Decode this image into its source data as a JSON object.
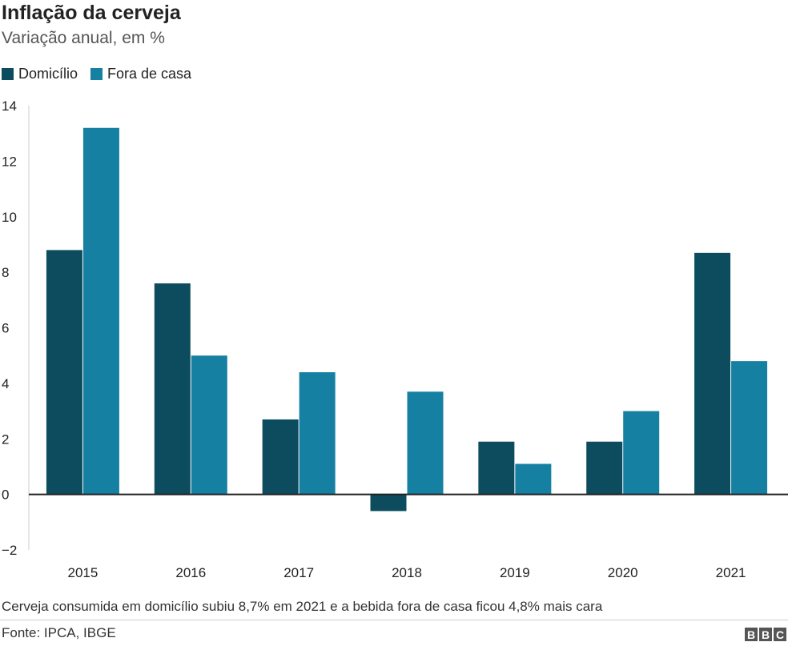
{
  "title": "Inflação da cerveja",
  "subtitle": "Variação anual, em %",
  "caption": "Cerveja consumida em domicílio subiu 8,7% em 2021 e a bebida fora de casa ficou 4,8% mais cara",
  "source": "Fonte: IPCA, IBGE",
  "logo": [
    "B",
    "B",
    "C"
  ],
  "colors": {
    "domicilio": "#0c4c5e",
    "fora": "#1680a3"
  },
  "chart_data": {
    "type": "bar",
    "title": "Inflação da cerveja",
    "subtitle": "Variação anual, em %",
    "categories": [
      "2015",
      "2016",
      "2017",
      "2018",
      "2019",
      "2020",
      "2021"
    ],
    "series": [
      {
        "name": "Domicílio",
        "values": [
          8.8,
          7.6,
          2.7,
          -0.6,
          1.9,
          1.9,
          8.7
        ]
      },
      {
        "name": "Fora de casa",
        "values": [
          13.2,
          5.0,
          4.4,
          3.7,
          1.1,
          3.0,
          4.8
        ]
      }
    ],
    "ylim": [
      -2,
      14
    ],
    "yticks": [
      14,
      12,
      10,
      8,
      6,
      4,
      2,
      0,
      -2
    ],
    "ytick_labels": [
      "14",
      "12",
      "10",
      "8",
      "6",
      "4",
      "2",
      "0",
      "−2"
    ],
    "legend": "top-left",
    "grid": false
  }
}
